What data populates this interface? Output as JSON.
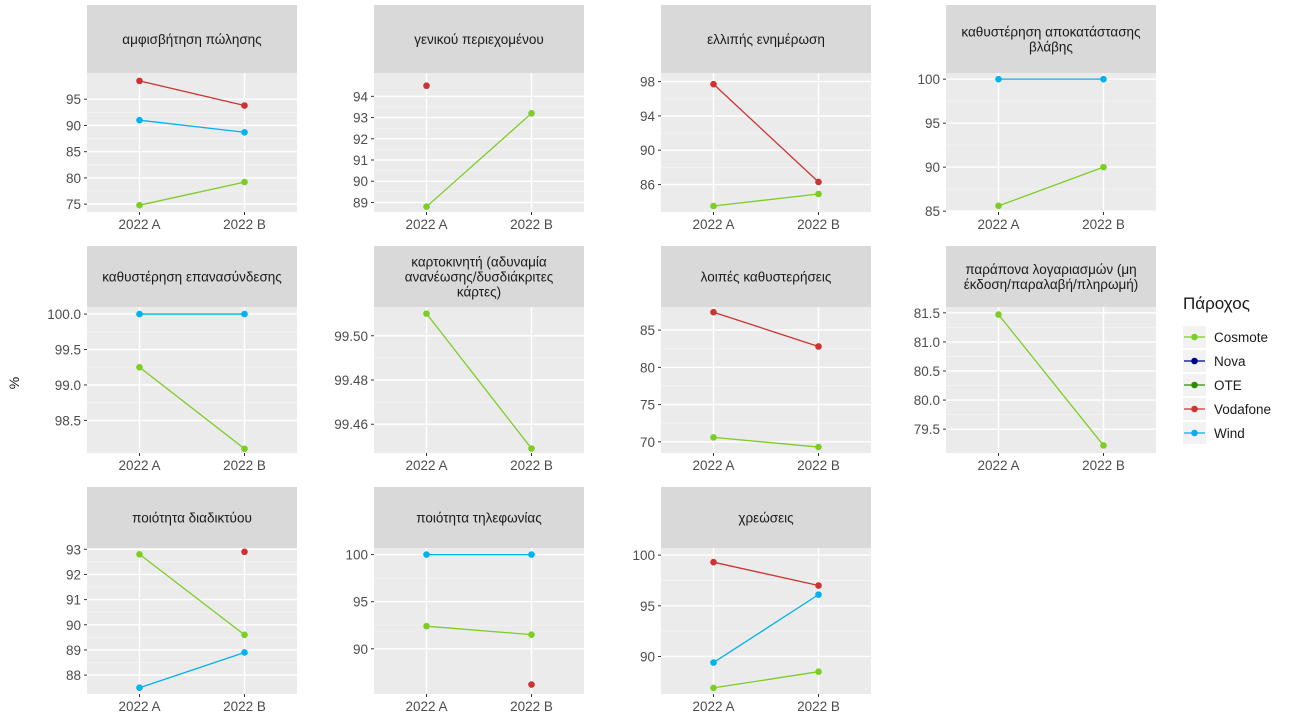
{
  "y_axis_title": "%",
  "legend": {
    "title": "Πάροχος",
    "entries": [
      {
        "name": "Cosmote",
        "color": "#7CCD24"
      },
      {
        "name": "Nova",
        "color": "#00008B"
      },
      {
        "name": "OTE",
        "color": "#2E8B00"
      },
      {
        "name": "Vodafone",
        "color": "#CD3333"
      },
      {
        "name": "Wind",
        "color": "#00B2EE"
      }
    ]
  },
  "chart_data": [
    {
      "type": "line",
      "title": "αμφισβήτηση πώλησης",
      "categories": [
        "2022 A",
        "2022 B"
      ],
      "yticks": [
        "75",
        "80",
        "85",
        "90",
        "95"
      ],
      "ylim": [
        73.5,
        100
      ],
      "series": [
        {
          "name": "Vodafone",
          "values": [
            98.5,
            93.8
          ]
        },
        {
          "name": "Wind",
          "values": [
            91.0,
            88.7
          ]
        },
        {
          "name": "Cosmote",
          "values": [
            74.8,
            79.2
          ]
        }
      ]
    },
    {
      "type": "line",
      "title": "γενικού περιεχομένου",
      "categories": [
        "2022 A",
        "2022 B"
      ],
      "yticks": [
        "89",
        "90",
        "91",
        "92",
        "93",
        "94"
      ],
      "ylim": [
        88.55,
        95.1
      ],
      "series": [
        {
          "name": "Vodafone",
          "values": [
            94.5,
            null
          ]
        },
        {
          "name": "Cosmote",
          "values": [
            88.8,
            93.2
          ]
        }
      ]
    },
    {
      "type": "line",
      "title": "ελλιπής ενημέρωση",
      "categories": [
        "2022 A",
        "2022 B"
      ],
      "yticks": [
        "86",
        "90",
        "94",
        "98"
      ],
      "ylim": [
        82.8,
        99.0
      ],
      "series": [
        {
          "name": "Vodafone",
          "values": [
            97.7,
            86.3
          ]
        },
        {
          "name": "Cosmote",
          "values": [
            83.5,
            84.9
          ]
        }
      ]
    },
    {
      "type": "line",
      "title": "καθυστέρηση αποκατάστασης βλάβης",
      "categories": [
        "2022 A",
        "2022 B"
      ],
      "yticks": [
        "85",
        "90",
        "95",
        "100"
      ],
      "ylim": [
        84.9,
        100.7
      ],
      "series": [
        {
          "name": "Wind",
          "values": [
            100.0,
            100.0
          ]
        },
        {
          "name": "Cosmote",
          "values": [
            85.6,
            90.0
          ]
        }
      ]
    },
    {
      "type": "line",
      "title": "καθυστέρηση επανασύνδεσης",
      "categories": [
        "2022 A",
        "2022 B"
      ],
      "yticks": [
        "98.5",
        "99.0",
        "99.5",
        "100.0"
      ],
      "ylim": [
        98.04,
        100.1
      ],
      "series": [
        {
          "name": "Wind",
          "values": [
            100.0,
            100.0
          ]
        },
        {
          "name": "Cosmote",
          "values": [
            99.25,
            98.1
          ]
        }
      ]
    },
    {
      "type": "line",
      "title": "καρτοκινητή (αδυναμία ανανέωσης/δυσδιάκριτες κάρτες)",
      "categories": [
        "2022 A",
        "2022 B"
      ],
      "yticks": [
        "99.46",
        "99.48",
        "99.50"
      ],
      "ylim": [
        99.447,
        99.513
      ],
      "series": [
        {
          "name": "Cosmote",
          "values": [
            99.51,
            99.449
          ]
        }
      ]
    },
    {
      "type": "line",
      "title": "λοιπές καθυστερήσεις",
      "categories": [
        "2022 A",
        "2022 B"
      ],
      "yticks": [
        "70",
        "75",
        "80",
        "85"
      ],
      "ylim": [
        68.5,
        88.1
      ],
      "series": [
        {
          "name": "Vodafone",
          "values": [
            87.4,
            82.8
          ]
        },
        {
          "name": "Cosmote",
          "values": [
            70.6,
            69.3
          ]
        }
      ]
    },
    {
      "type": "line",
      "title": "παράπονα λογαριασμών (μη έκδοση/παραλαβή/πληρωμή)",
      "categories": [
        "2022 A",
        "2022 B"
      ],
      "yticks": [
        "79.5",
        "80.0",
        "80.5",
        "81.0",
        "81.5"
      ],
      "ylim": [
        79.09,
        81.6
      ],
      "series": [
        {
          "name": "Cosmote",
          "values": [
            81.47,
            79.22
          ]
        }
      ]
    },
    {
      "type": "line",
      "title": "ποιότητα διαδικτύου",
      "categories": [
        "2022 A",
        "2022 B"
      ],
      "yticks": [
        "88",
        "89",
        "90",
        "91",
        "92",
        "93"
      ],
      "ylim": [
        87.25,
        93.05
      ],
      "series": [
        {
          "name": "Vodafone",
          "values": [
            null,
            92.9
          ]
        },
        {
          "name": "Cosmote",
          "values": [
            92.8,
            89.6
          ]
        },
        {
          "name": "Wind",
          "values": [
            87.5,
            88.9
          ]
        }
      ]
    },
    {
      "type": "line",
      "title": "ποιότητα τηλεφωνίας",
      "categories": [
        "2022 A",
        "2022 B"
      ],
      "yticks": [
        "90",
        "95",
        "100"
      ],
      "ylim": [
        85.2,
        100.7
      ],
      "series": [
        {
          "name": "Wind",
          "values": [
            100.0,
            100.0
          ]
        },
        {
          "name": "Cosmote",
          "values": [
            92.4,
            91.5
          ]
        },
        {
          "name": "Vodafone",
          "values": [
            null,
            86.2
          ]
        }
      ]
    },
    {
      "type": "line",
      "title": "χρεώσεις",
      "categories": [
        "2022 A",
        "2022 B"
      ],
      "yticks": [
        "90",
        "95",
        "100"
      ],
      "ylim": [
        86.3,
        100.7
      ],
      "series": [
        {
          "name": "Vodafone",
          "values": [
            99.3,
            97.0
          ]
        },
        {
          "name": "Wind",
          "values": [
            89.4,
            96.1
          ]
        },
        {
          "name": "Cosmote",
          "values": [
            86.9,
            88.5
          ]
        }
      ]
    }
  ]
}
